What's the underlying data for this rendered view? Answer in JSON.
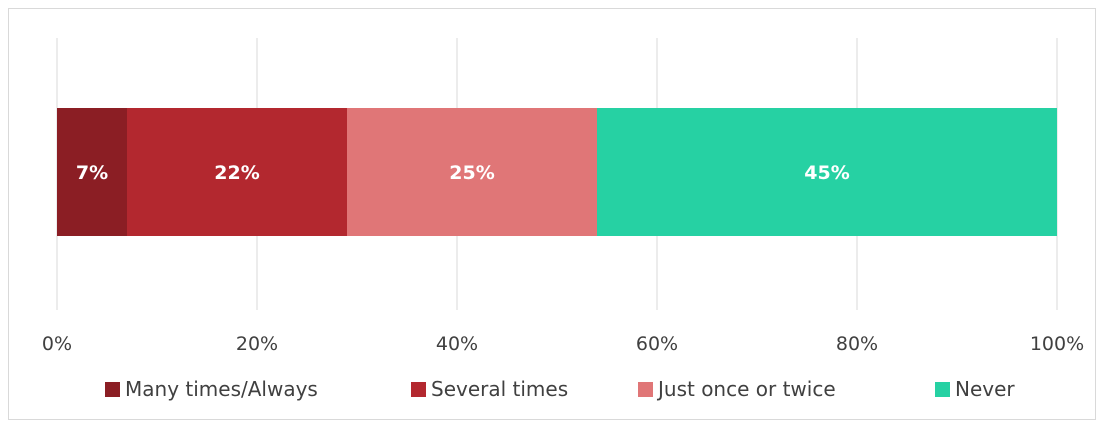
{
  "chart_data": {
    "type": "bar",
    "orientation": "horizontal",
    "stacked": true,
    "series": [
      {
        "name": "Many times/Always",
        "value": 7,
        "label": "7%",
        "color": "#8b1e24"
      },
      {
        "name": "Several times",
        "value": 22,
        "label": "22%",
        "color": "#b3282f"
      },
      {
        "name": "Just once or twice",
        "value": 25,
        "label": "25%",
        "color": "#e07677"
      },
      {
        "name": "Never",
        "value": 45,
        "label": "45%",
        "color": "#26d1a3"
      }
    ],
    "xlim": [
      0,
      100
    ],
    "x_ticks": [
      "0%",
      "20%",
      "40%",
      "60%",
      "80%",
      "100%"
    ],
    "grid": "vertical",
    "legend_position": "bottom"
  }
}
